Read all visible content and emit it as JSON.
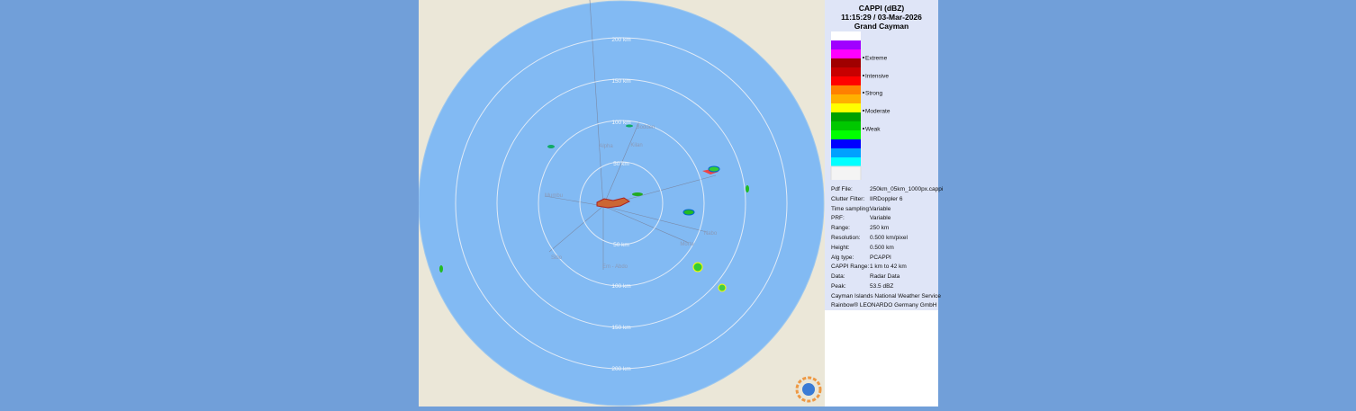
{
  "header": {
    "title": "CAPPI (dBZ)",
    "time": "11:15:29 / 03-Mar-2026",
    "station": "Grand Cayman"
  },
  "legend": {
    "colors": [
      "#ffffff",
      "#a000ff",
      "#ff00ff",
      "#a00000",
      "#c80000",
      "#ff0000",
      "#ff8000",
      "#ffb000",
      "#ffff00",
      "#00a000",
      "#00c800",
      "#00ff00",
      "#0000ff",
      "#00a0ff",
      "#00ffff"
    ],
    "labels": [
      "Extreme",
      "Intensive",
      "Strong",
      "Moderate",
      "Weak"
    ]
  },
  "range_labels": [
    "200 km",
    "150 km",
    "100 km",
    "50 km"
  ],
  "places": [
    "Alpha",
    "Kilan",
    "Bodden",
    "Mumbu",
    "Nabo",
    "Morte",
    "Sibo",
    "Em - Abdo"
  ],
  "info": {
    "rows": [
      [
        "Pdf File:",
        "250km_05km_1000px.cappi"
      ],
      [
        "Clutter Filter:",
        "IIRDoppler 6"
      ],
      [
        "Time sampling:",
        "Variable"
      ],
      [
        "PRF:",
        "Variable"
      ],
      [
        "Range:",
        "250 km"
      ],
      [
        "Resolution:",
        "0.500 km/pixel"
      ],
      [
        "Height:",
        "0.500 km"
      ],
      [
        "Alg type:",
        "PCAPPI"
      ],
      [
        "CAPPI Range:",
        "1 km to 42 km"
      ],
      [
        "Data:",
        "Radar Data"
      ],
      [
        "Peak:",
        "53.5 dBZ"
      ]
    ],
    "footer": [
      "Cayman Islands National Weather Service",
      "Rainbow® LEONARDO Germany GmbH"
    ]
  }
}
